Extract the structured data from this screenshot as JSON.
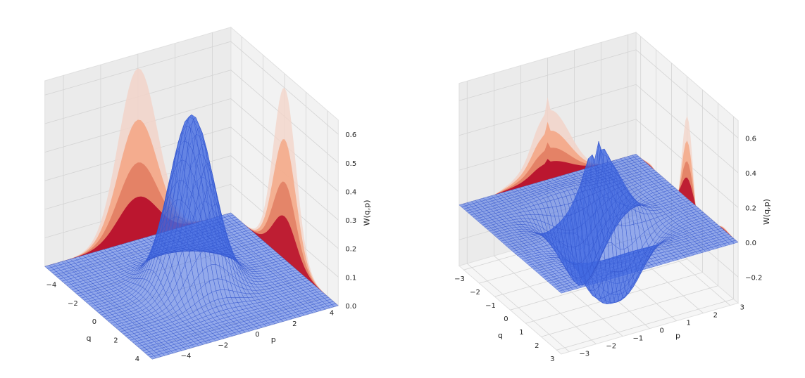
{
  "chart_data": [
    {
      "type": "surface3d",
      "title": "",
      "xlabel": "q",
      "ylabel": "p",
      "zlabel": "W(q,p)",
      "xlim": [
        -5,
        5
      ],
      "ylim": [
        -5,
        5
      ],
      "zlim": [
        0,
        0.65
      ],
      "x_ticks": [
        -4,
        -2,
        0,
        2,
        4
      ],
      "x_tick_labels": [
        "−4",
        "−2",
        "0",
        "2",
        "4"
      ],
      "y_ticks": [
        -4,
        -2,
        0,
        2,
        4
      ],
      "y_tick_labels": [
        "−4",
        "−2",
        "0",
        "2",
        "4"
      ],
      "z_ticks": [
        0.0,
        0.1,
        0.2,
        0.3,
        0.4,
        0.5,
        0.6
      ],
      "z_tick_labels": [
        "0.0",
        "0.1",
        "0.2",
        "0.3",
        "0.4",
        "0.5",
        "0.6"
      ],
      "state": "Gaussian peak at (q=0, p=0), maximum W ≈ 0.6",
      "surface_color": "#4169e1",
      "projection_colors": [
        "#b40426",
        "#e07a5f",
        "#f4a582",
        "#f2d4c9"
      ]
    },
    {
      "type": "surface3d",
      "title": "",
      "xlabel": "q",
      "ylabel": "p",
      "zlabel": "W(q,p)",
      "xlim": [
        -3.3,
        3.3
      ],
      "ylim": [
        -3.3,
        3.3
      ],
      "zlim": [
        -0.35,
        0.7
      ],
      "x_ticks": [
        -3,
        -2,
        -1,
        0,
        1,
        2,
        3
      ],
      "x_tick_labels": [
        "−3",
        "−2",
        "−1",
        "0",
        "1",
        "2",
        "3"
      ],
      "y_ticks": [
        -3,
        -2,
        -1,
        0,
        1,
        2,
        3
      ],
      "y_tick_labels": [
        "−3",
        "−2",
        "−1",
        "0",
        "1",
        "2",
        "3"
      ],
      "z_ticks": [
        -0.2,
        0.0,
        0.2,
        0.4,
        0.6
      ],
      "z_tick_labels": [
        "−0.2",
        "0.0",
        "0.2",
        "0.4",
        "0.6"
      ],
      "state": "Oscillating Wigner function with positive peaks and negative dips (min ≈ −0.3, max ≈ 0.6)",
      "surface_color": "#4169e1",
      "projection_colors": [
        "#b40426",
        "#e07a5f",
        "#f4a582",
        "#f2d4c9"
      ]
    }
  ]
}
